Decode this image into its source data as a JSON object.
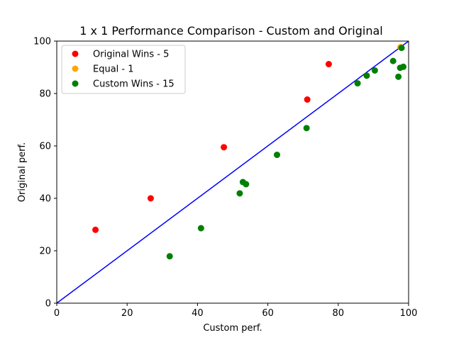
{
  "chart_data": {
    "type": "scatter",
    "title": "1 x 1 Performance Comparison - Custom and Original",
    "xlabel": "Custom perf.",
    "ylabel": "Original perf.",
    "xlim": [
      0,
      100
    ],
    "ylim": [
      0,
      100
    ],
    "xticks": [
      0,
      20,
      40,
      60,
      80,
      100
    ],
    "yticks": [
      0,
      20,
      40,
      60,
      80,
      100
    ],
    "grid": false,
    "legend_position": "top-left",
    "reference_line": {
      "from": [
        0,
        0
      ],
      "to": [
        100,
        100
      ],
      "color": "#0000ff"
    },
    "series": [
      {
        "name": "Original Wins - 5",
        "color": "#ff0000",
        "points": [
          [
            11,
            28
          ],
          [
            26.7,
            40
          ],
          [
            47.5,
            59.5
          ],
          [
            71.2,
            77.7
          ],
          [
            77.3,
            91.2
          ]
        ]
      },
      {
        "name": "Equal - 1",
        "color": "#ffa500",
        "points": [
          [
            97.7,
            97.7
          ]
        ]
      },
      {
        "name": "Custom Wins - 15",
        "color": "#008000",
        "points": [
          [
            32.1,
            17.9
          ],
          [
            41,
            28.6
          ],
          [
            52,
            41.9
          ],
          [
            52.9,
            46.2
          ],
          [
            53.8,
            45.4
          ],
          [
            62.6,
            56.6
          ],
          [
            71,
            66.8
          ],
          [
            85.5,
            83.9
          ],
          [
            88.1,
            86.8
          ],
          [
            90.4,
            88.8
          ],
          [
            95.6,
            92.4
          ],
          [
            97.1,
            86.4
          ],
          [
            97.6,
            89.8
          ],
          [
            98.5,
            90.2
          ],
          [
            98,
            97.4
          ]
        ]
      }
    ]
  }
}
